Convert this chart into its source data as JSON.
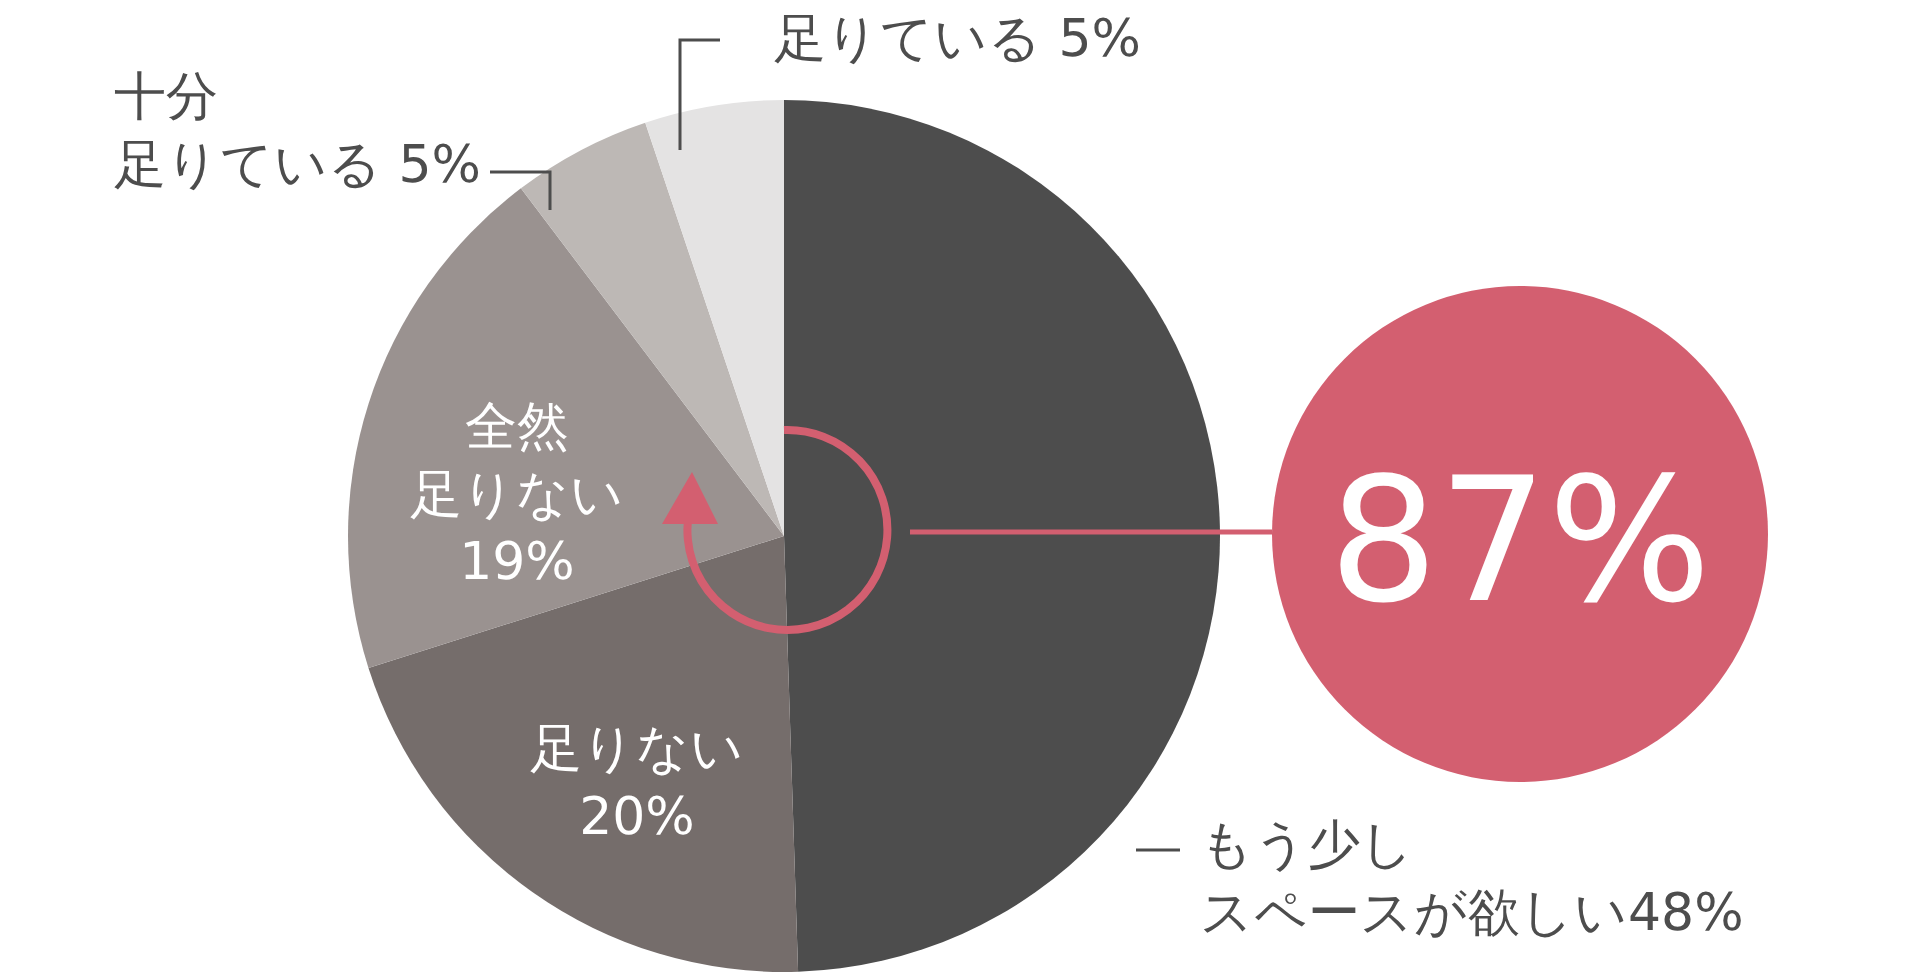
{
  "chart_data": {
    "type": "pie",
    "categories": [
      "もう少しスペースが欲しい",
      "足りない",
      "全然足りない",
      "十分足りている",
      "足りている"
    ],
    "values": [
      48,
      20,
      19,
      5,
      5
    ],
    "colors": [
      "#4d4d4d",
      "#756d6b",
      "#9a9290",
      "#bdb8b5",
      "#e4e3e3"
    ],
    "value_labels": [
      "48%",
      "20%",
      "19%",
      "5%",
      "5%"
    ],
    "annotations": [
      "87%"
    ]
  }
}
